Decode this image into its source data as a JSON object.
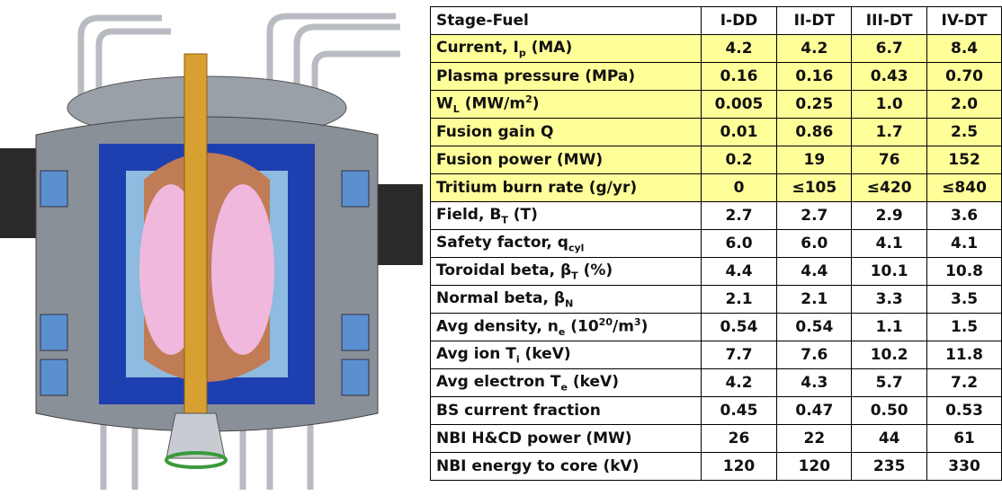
{
  "table": {
    "header": [
      "Stage-Fuel",
      "I-DD",
      "II-DT",
      "III-DT",
      "IV-DT"
    ],
    "rows": [
      {
        "label": [
          "Current, I",
          {
            "sub": "p"
          },
          " (MA)"
        ],
        "cells": [
          "4.2",
          "4.2",
          "6.7",
          "8.4"
        ],
        "highlight": true
      },
      {
        "label": [
          "Plasma pressure (MPa)"
        ],
        "cells": [
          "0.16",
          "0.16",
          "0.43",
          "0.70"
        ],
        "highlight": true
      },
      {
        "label": [
          "W",
          {
            "sub": "L"
          },
          " (MW/m",
          {
            "sup": "2"
          },
          ")"
        ],
        "cells": [
          "0.005",
          "0.25",
          "1.0",
          "2.0"
        ],
        "highlight": true
      },
      {
        "label": [
          "Fusion gain Q"
        ],
        "cells": [
          "0.01",
          "0.86",
          "1.7",
          "2.5"
        ],
        "highlight": true
      },
      {
        "label": [
          "Fusion power (MW)"
        ],
        "cells": [
          "0.2",
          "19",
          "76",
          "152"
        ],
        "highlight": true
      },
      {
        "label": [
          "Tritium burn rate (g/yr)"
        ],
        "cells": [
          "0",
          "≤105",
          "≤420",
          "≤840"
        ],
        "highlight": true
      },
      {
        "label": [
          "Field, B",
          {
            "sub": "T"
          },
          " (T)"
        ],
        "cells": [
          "2.7",
          "2.7",
          "2.9",
          "3.6"
        ],
        "highlight": false
      },
      {
        "label": [
          "Safety factor, q",
          {
            "sub": "cyl"
          }
        ],
        "cells": [
          "6.0",
          "6.0",
          "4.1",
          "4.1"
        ],
        "highlight": false
      },
      {
        "label": [
          "Toroidal beta, β",
          {
            "sub": "T"
          },
          " (%)"
        ],
        "cells": [
          "4.4",
          "4.4",
          "10.1",
          "10.8"
        ],
        "highlight": false
      },
      {
        "label": [
          "Normal beta, β",
          {
            "sub": "N"
          }
        ],
        "cells": [
          "2.1",
          "2.1",
          "3.3",
          "3.5"
        ],
        "highlight": false
      },
      {
        "label": [
          "Avg density, n",
          {
            "sub": "e"
          },
          " (10",
          {
            "sup": "20"
          },
          "/m",
          {
            "sup": "3"
          },
          ")"
        ],
        "cells": [
          "0.54",
          "0.54",
          "1.1",
          "1.5"
        ],
        "highlight": false
      },
      {
        "label": [
          "Avg ion T",
          {
            "sub": "i"
          },
          " (keV)"
        ],
        "cells": [
          "7.7",
          "7.6",
          "10.2",
          "11.8"
        ],
        "highlight": false
      },
      {
        "label": [
          "Avg electron T",
          {
            "sub": "e"
          },
          " (keV)"
        ],
        "cells": [
          "4.2",
          "4.3",
          "5.7",
          "7.2"
        ],
        "highlight": false
      },
      {
        "label": [
          "BS current fraction"
        ],
        "cells": [
          "0.45",
          "0.47",
          "0.50",
          "0.53"
        ],
        "highlight": false
      },
      {
        "label": [
          "NBI H&CD power (MW)"
        ],
        "cells": [
          "26",
          "22",
          "44",
          "61"
        ],
        "highlight": false
      },
      {
        "label": [
          "NBI energy to core (kV)"
        ],
        "cells": [
          "120",
          "120",
          "235",
          "330"
        ],
        "highlight": false
      }
    ]
  }
}
